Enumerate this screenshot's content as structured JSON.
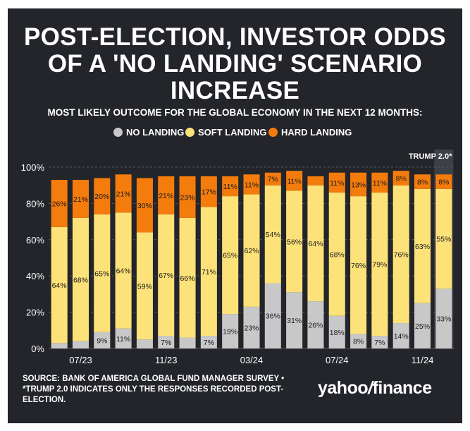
{
  "title_lines": [
    "POST-ELECTION, INVESTOR ODDS",
    "OF A 'NO LANDING' SCENARIO",
    "INCREASE"
  ],
  "subtitle": "MOST LIKELY OUTCOME FOR THE GLOBAL ECONOMY IN THE NEXT 12 MONTHS:",
  "legend": [
    {
      "label": "NO LANDING",
      "color": "#c8c8c8"
    },
    {
      "label": "SOFT LANDING",
      "color": "#fde27a"
    },
    {
      "label": "HARD LANDING",
      "color": "#f47c0c"
    }
  ],
  "annotation": "TRUMP 2.0*",
  "source_lines": [
    "SOURCE: BANK OF AMERICA GLOBAL FUND MANAGER SURVEY •",
    "*TRUMP 2.0 INDICATES ONLY THE RESPONSES RECORDED POST-",
    "ELECTION."
  ],
  "brand": {
    "part1": "yahoo",
    "slash": "/",
    "part2": "finance"
  },
  "colors": {
    "background": "#23252a",
    "grid": "#55585e",
    "text": "#ffffff",
    "highlight": "#3d4046"
  },
  "chart_data": {
    "type": "bar",
    "stacked": true,
    "ylim": [
      0,
      100
    ],
    "yticks": [
      "0%",
      "20%",
      "40%",
      "60%",
      "80%",
      "100%"
    ],
    "xtick_labels": [
      {
        "index": 1,
        "label": "07/23"
      },
      {
        "index": 5,
        "label": "11/23"
      },
      {
        "index": 9,
        "label": "03/24"
      },
      {
        "index": 13,
        "label": "07/24"
      },
      {
        "index": 17,
        "label": "11/24"
      }
    ],
    "highlight_index": 19,
    "series": [
      {
        "name": "NO LANDING",
        "color": "#c8c8c8",
        "values": [
          3,
          4,
          9,
          11,
          5,
          7,
          6,
          7,
          19,
          23,
          36,
          31,
          26,
          18,
          8,
          7,
          14,
          25,
          33
        ],
        "labels": [
          "",
          "",
          "9%",
          "11%",
          "",
          "7%",
          "",
          "7%",
          "19%",
          "23%",
          "36%",
          "31%",
          "26%",
          "18%",
          "8%",
          "7%",
          "14%",
          "25%",
          "33%"
        ]
      },
      {
        "name": "SOFT LANDING",
        "color": "#fde27a",
        "values": [
          64,
          68,
          65,
          64,
          59,
          67,
          66,
          71,
          65,
          62,
          54,
          56,
          64,
          68,
          76,
          79,
          76,
          63,
          55
        ],
        "labels": [
          "64%",
          "68%",
          "65%",
          "64%",
          "59%",
          "67%",
          "66%",
          "71%",
          "65%",
          "62%",
          "54%",
          "56%",
          "64%",
          "68%",
          "76%",
          "79%",
          "76%",
          "63%",
          "55%"
        ]
      },
      {
        "name": "HARD LANDING",
        "color": "#f47c0c",
        "values": [
          26,
          21,
          20,
          21,
          30,
          21,
          23,
          17,
          11,
          11,
          7,
          11,
          5,
          11,
          13,
          11,
          8,
          8,
          8
        ],
        "labels": [
          "26%",
          "21%",
          "20%",
          "21%",
          "30%",
          "21%",
          "23%",
          "17%",
          "11%",
          "11%",
          "7%",
          "11%",
          "",
          "11%",
          "13%",
          "11%",
          "8%",
          "8%",
          "8%"
        ]
      }
    ]
  }
}
